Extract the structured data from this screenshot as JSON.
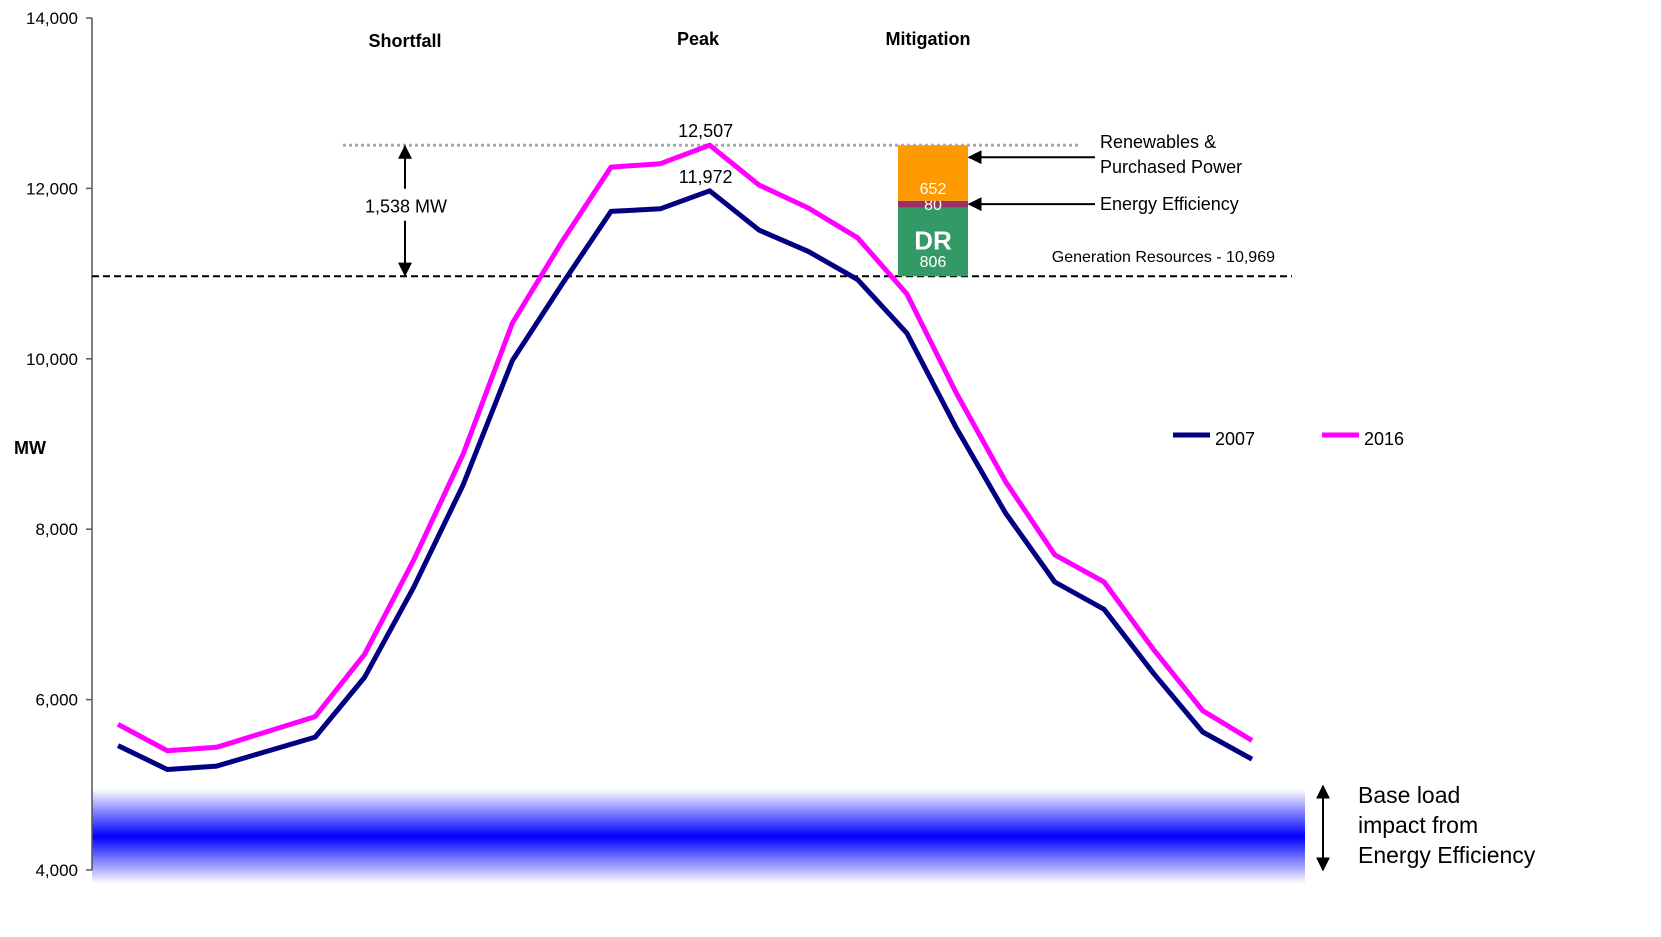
{
  "chart_data": {
    "type": "line",
    "ylabel": "MW",
    "ylim": [
      4000,
      14000
    ],
    "yticks": [
      "4,000",
      "6,000",
      "8,000",
      "10,000",
      "12,000",
      "14,000"
    ],
    "grid": false,
    "legend_position": "right",
    "x": [
      1,
      2,
      3,
      4,
      5,
      6,
      7,
      8,
      9,
      10,
      11,
      12,
      13,
      14,
      15,
      16,
      17,
      18,
      19,
      20,
      21,
      22,
      23,
      24
    ],
    "series": [
      {
        "name": "2007",
        "color": "#000080",
        "values": [
          5460,
          5180,
          5220,
          5390,
          5560,
          6260,
          7320,
          8520,
          9980,
          10870,
          11730,
          11760,
          11972,
          11510,
          11260,
          10930,
          10300,
          9190,
          8190,
          7380,
          7060,
          6310,
          5620,
          5300
        ]
      },
      {
        "name": "2016",
        "color": "#ff00ff",
        "values": [
          5710,
          5400,
          5440,
          5620,
          5800,
          6530,
          7640,
          8880,
          10420,
          11370,
          12250,
          12290,
          12507,
          12040,
          11770,
          11420,
          10760,
          9600,
          8560,
          7700,
          7380,
          6590,
          5870,
          5520
        ]
      }
    ],
    "section_headers": [
      "Shortfall",
      "Peak",
      "Mitigation"
    ],
    "annotations": {
      "peak_2016": "12,507",
      "peak_2007": "11,972",
      "shortfall": "1,538 MW",
      "generation_line": "Generation Resources - 10,969",
      "generation_value": 10969,
      "peak_value": 12507,
      "base_load_lines": [
        "Base load",
        "impact from",
        "Energy Efficiency"
      ],
      "base_load_range": [
        4000,
        4950
      ]
    },
    "mitigation_stack": [
      {
        "label": "806",
        "big_label": "DR",
        "value": 806,
        "color": "#339966",
        "bottom": 10969
      },
      {
        "label": "80",
        "value": 80,
        "color": "#993366",
        "bottom": 11775,
        "note": "Energy Efficiency"
      },
      {
        "label": "652",
        "value": 652,
        "color": "#ff9900",
        "bottom": 11855,
        "note_lines": [
          "Renewables &",
          "Purchased Power"
        ]
      }
    ]
  }
}
